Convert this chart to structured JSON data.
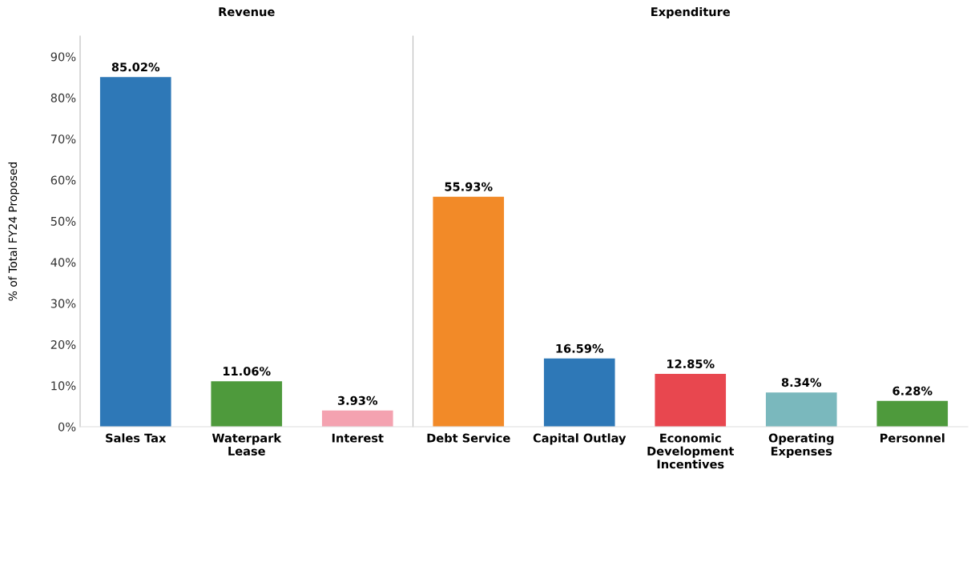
{
  "chart_data": [
    {
      "type": "bar",
      "title": "Revenue",
      "ylabel": "% of Total FY24 Proposed",
      "categories": [
        "Sales Tax",
        "Waterpark\nLease",
        "Interest"
      ],
      "values": [
        85.02,
        11.06,
        3.93
      ],
      "colors": [
        "#2e78b7",
        "#4e9a3c",
        "#f4a2b0"
      ],
      "value_labels": [
        "85.02%",
        "11.06%",
        "3.93%"
      ],
      "ylim": [
        0,
        95
      ],
      "yticks": [
        {
          "value": 0,
          "label": "0%"
        },
        {
          "value": 10,
          "label": "10%"
        },
        {
          "value": 20,
          "label": "20%"
        },
        {
          "value": 30,
          "label": "30%"
        },
        {
          "value": 40,
          "label": "40%"
        },
        {
          "value": 50,
          "label": "50%"
        },
        {
          "value": 60,
          "label": "60%"
        },
        {
          "value": 70,
          "label": "70%"
        },
        {
          "value": 80,
          "label": "80%"
        },
        {
          "value": 90,
          "label": "90%"
        }
      ]
    },
    {
      "type": "bar",
      "title": "Expenditure",
      "categories": [
        "Debt Service",
        "Capital Outlay",
        "Economic\nDevelopment\nIncentives",
        "Operating\nExpenses",
        "Personnel"
      ],
      "values": [
        55.93,
        16.59,
        12.85,
        8.34,
        6.28
      ],
      "colors": [
        "#f28a28",
        "#2e78b7",
        "#e8474f",
        "#7ab8bd",
        "#4e9a3c"
      ],
      "value_labels": [
        "55.93%",
        "16.59%",
        "12.85%",
        "8.34%",
        "6.28%"
      ],
      "ylim": [
        0,
        95
      ],
      "tick_labels": "x"
    }
  ]
}
